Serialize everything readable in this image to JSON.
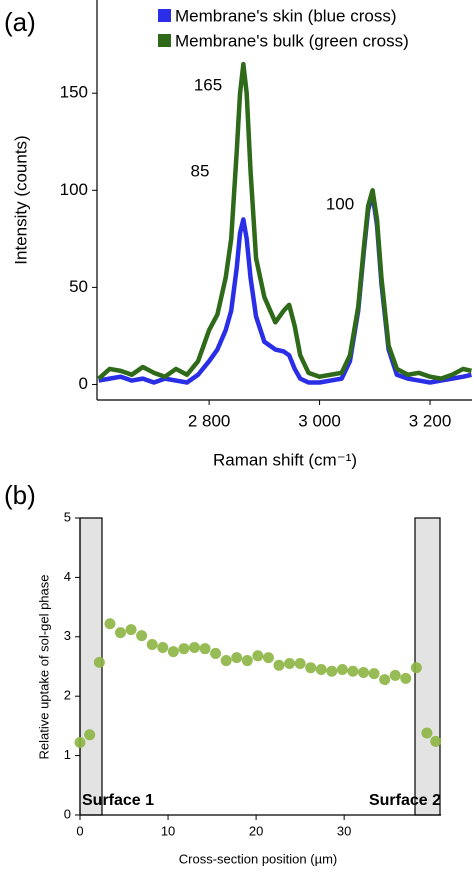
{
  "chart_data": [
    {
      "type": "line",
      "panel": "(a)",
      "xlabel": "Raman shift (cm⁻¹)",
      "ylabel": "Intensity (counts)",
      "x": [
        2600,
        2620,
        2640,
        2660,
        2680,
        2700,
        2720,
        2740,
        2760,
        2780,
        2800,
        2815,
        2830,
        2840,
        2850,
        2856,
        2862,
        2868,
        2875,
        2885,
        2900,
        2920,
        2935,
        2945,
        2955,
        2965,
        2980,
        3000,
        3020,
        3040,
        3055,
        3070,
        3080,
        3088,
        3096,
        3104,
        3112,
        3125,
        3140,
        3160,
        3180,
        3200,
        3220,
        3240,
        3260,
        3275
      ],
      "series": [
        {
          "name": "Membrane's skin (blue cross)",
          "color": "#2a2ee6",
          "values": [
            2,
            3,
            4,
            2,
            3,
            1,
            3,
            2,
            1,
            5,
            12,
            18,
            28,
            38,
            60,
            78,
            85,
            75,
            55,
            35,
            22,
            18,
            17,
            15,
            8,
            3,
            1,
            1,
            2,
            3,
            12,
            38,
            68,
            90,
            98,
            82,
            52,
            18,
            5,
            3,
            2,
            1,
            2,
            3,
            4,
            5
          ]
        },
        {
          "name": "Membrane's bulk (green cross)",
          "color": "#2e6a1a",
          "values": [
            3,
            8,
            7,
            5,
            9,
            6,
            4,
            8,
            5,
            12,
            28,
            36,
            55,
            75,
            120,
            150,
            165,
            150,
            110,
            65,
            45,
            32,
            38,
            41,
            30,
            15,
            6,
            4,
            5,
            6,
            15,
            40,
            70,
            92,
            100,
            85,
            55,
            20,
            8,
            5,
            6,
            4,
            3,
            5,
            8,
            7
          ]
        }
      ],
      "annotations": [
        {
          "text": "165",
          "color": "#3a7a1f"
        },
        {
          "text": "85",
          "color": "#2a2ee6"
        },
        {
          "text": "100",
          "color": "#000000"
        }
      ],
      "xlim": [
        2597,
        3276
      ],
      "ylim": [
        -8,
        198
      ],
      "xticks": [
        {
          "value": 2800,
          "label": "2 800"
        },
        {
          "value": 3000,
          "label": "3 000"
        },
        {
          "value": 3200,
          "label": "3 200"
        }
      ],
      "yticks": [
        0,
        50,
        100,
        150
      ]
    },
    {
      "type": "scatter",
      "panel": "(b)",
      "xlabel": "Cross-section position (µm)",
      "ylabel": "Relative uptake of sol-gel phase",
      "annotations": [
        {
          "text": "Surface 1",
          "color": "#2c4a72"
        },
        {
          "text": "Surface 2",
          "color": "#2c4a72"
        }
      ],
      "color": "#8cb543",
      "x": [
        0,
        1.1,
        2.2,
        3.4,
        4.6,
        5.8,
        7,
        8.2,
        9.4,
        10.6,
        11.8,
        13,
        14.2,
        15.4,
        16.6,
        17.8,
        19,
        20.2,
        21.4,
        22.6,
        23.8,
        25,
        26.2,
        27.4,
        28.6,
        29.8,
        31,
        32.2,
        33.4,
        34.6,
        35.8,
        37,
        38.2,
        39.4,
        40.4
      ],
      "values": [
        1.22,
        1.35,
        2.57,
        3.22,
        3.07,
        3.12,
        3.02,
        2.87,
        2.82,
        2.75,
        2.8,
        2.82,
        2.8,
        2.72,
        2.6,
        2.65,
        2.6,
        2.68,
        2.65,
        2.52,
        2.55,
        2.55,
        2.48,
        2.45,
        2.42,
        2.45,
        2.42,
        2.4,
        2.38,
        2.28,
        2.35,
        2.3,
        2.48,
        1.38,
        1.24
      ],
      "xlim": [
        0,
        41
      ],
      "ylim": [
        0,
        5
      ],
      "xticks": [
        0,
        10,
        20,
        30
      ],
      "yticks": [
        0,
        1,
        2,
        3,
        4,
        5
      ]
    }
  ]
}
